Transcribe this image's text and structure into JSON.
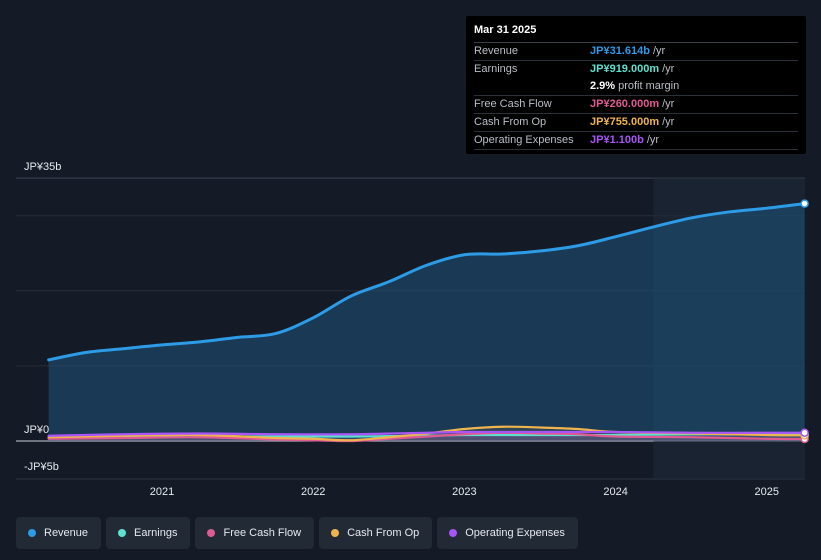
{
  "tooltip": {
    "date": "Mar 31 2025",
    "rows": [
      {
        "name": "Revenue",
        "value": "JP¥31.614b",
        "unit": "/yr",
        "color": "#2d9be6"
      },
      {
        "name": "Earnings",
        "value": "JP¥919.000m",
        "unit": "/yr",
        "color": "#5fe0cf"
      },
      {
        "name": "",
        "value": "2.9%",
        "unit": "profit margin",
        "color": "#ffffff"
      },
      {
        "name": "Free Cash Flow",
        "value": "JP¥260.000m",
        "unit": "/yr",
        "color": "#e05a92"
      },
      {
        "name": "Cash From Op",
        "value": "JP¥755.000m",
        "unit": "/yr",
        "color": "#efb44f"
      },
      {
        "name": "Operating Expenses",
        "value": "JP¥1.100b",
        "unit": "/yr",
        "color": "#a855f7"
      }
    ]
  },
  "legend": [
    {
      "label": "Revenue",
      "color": "#2d9be6"
    },
    {
      "label": "Earnings",
      "color": "#5fe0cf"
    },
    {
      "label": "Free Cash Flow",
      "color": "#e05a92"
    },
    {
      "label": "Cash From Op",
      "color": "#efb44f"
    },
    {
      "label": "Operating Expenses",
      "color": "#a855f7"
    }
  ],
  "chart_data": {
    "type": "area",
    "x_ticks": [
      2021,
      2022,
      2023,
      2024,
      2025
    ],
    "y_tick_labels": [
      "JP¥35b",
      "JP¥0",
      "-JP¥5b"
    ],
    "ylim": [
      -5,
      35
    ],
    "xlim": [
      2020.0,
      2025.25
    ],
    "grid": true,
    "highlight_start": 2024.25,
    "series": [
      {
        "name": "Revenue",
        "color": "#2d9be6",
        "x": [
          2020.25,
          2020.5,
          2020.75,
          2021.0,
          2021.25,
          2021.5,
          2021.75,
          2022.0,
          2022.25,
          2022.5,
          2022.75,
          2023.0,
          2023.25,
          2023.5,
          2023.75,
          2024.0,
          2024.25,
          2024.5,
          2024.75,
          2025.0,
          2025.25
        ],
        "values": [
          10.8,
          11.8,
          12.3,
          12.8,
          13.2,
          13.8,
          14.3,
          16.4,
          19.3,
          21.2,
          23.4,
          24.8,
          24.9,
          25.3,
          26.0,
          27.2,
          28.5,
          29.7,
          30.5,
          31.0,
          31.614
        ]
      },
      {
        "name": "Earnings",
        "color": "#5fe0cf",
        "x": [
          2020.25,
          2020.75,
          2021.25,
          2021.75,
          2022.25,
          2022.75,
          2023.0,
          2023.5,
          2024.0,
          2024.5,
          2025.0,
          2025.25
        ],
        "values": [
          0.4,
          0.5,
          0.6,
          0.6,
          0.6,
          0.7,
          0.8,
          0.8,
          0.8,
          0.9,
          0.9,
          0.919
        ]
      },
      {
        "name": "Free Cash Flow",
        "color": "#e05a92",
        "x": [
          2020.25,
          2020.75,
          2021.25,
          2021.75,
          2022.0,
          2022.25,
          2022.5,
          2022.75,
          2023.0,
          2023.25,
          2023.5,
          2023.75,
          2024.0,
          2024.5,
          2025.0,
          2025.25
        ],
        "values": [
          0.3,
          0.4,
          0.5,
          0.2,
          0.1,
          0.0,
          0.3,
          0.6,
          0.9,
          1.1,
          1.0,
          0.9,
          0.6,
          0.5,
          0.3,
          0.26
        ]
      },
      {
        "name": "Cash From Op",
        "color": "#efb44f",
        "x": [
          2020.25,
          2020.75,
          2021.25,
          2021.75,
          2022.0,
          2022.25,
          2022.5,
          2022.75,
          2023.0,
          2023.25,
          2023.5,
          2023.75,
          2024.0,
          2024.5,
          2025.0,
          2025.25
        ],
        "values": [
          0.5,
          0.7,
          0.8,
          0.4,
          0.3,
          0.1,
          0.5,
          1.0,
          1.6,
          1.9,
          1.8,
          1.6,
          1.2,
          1.0,
          0.8,
          0.755
        ]
      },
      {
        "name": "Operating Expenses",
        "color": "#a855f7",
        "x": [
          2020.25,
          2020.75,
          2021.25,
          2021.75,
          2022.25,
          2022.75,
          2023.0,
          2023.5,
          2024.0,
          2024.5,
          2025.0,
          2025.25
        ],
        "values": [
          0.7,
          0.9,
          1.0,
          0.9,
          0.9,
          1.1,
          1.2,
          1.2,
          1.2,
          1.1,
          1.1,
          1.1
        ]
      }
    ]
  }
}
